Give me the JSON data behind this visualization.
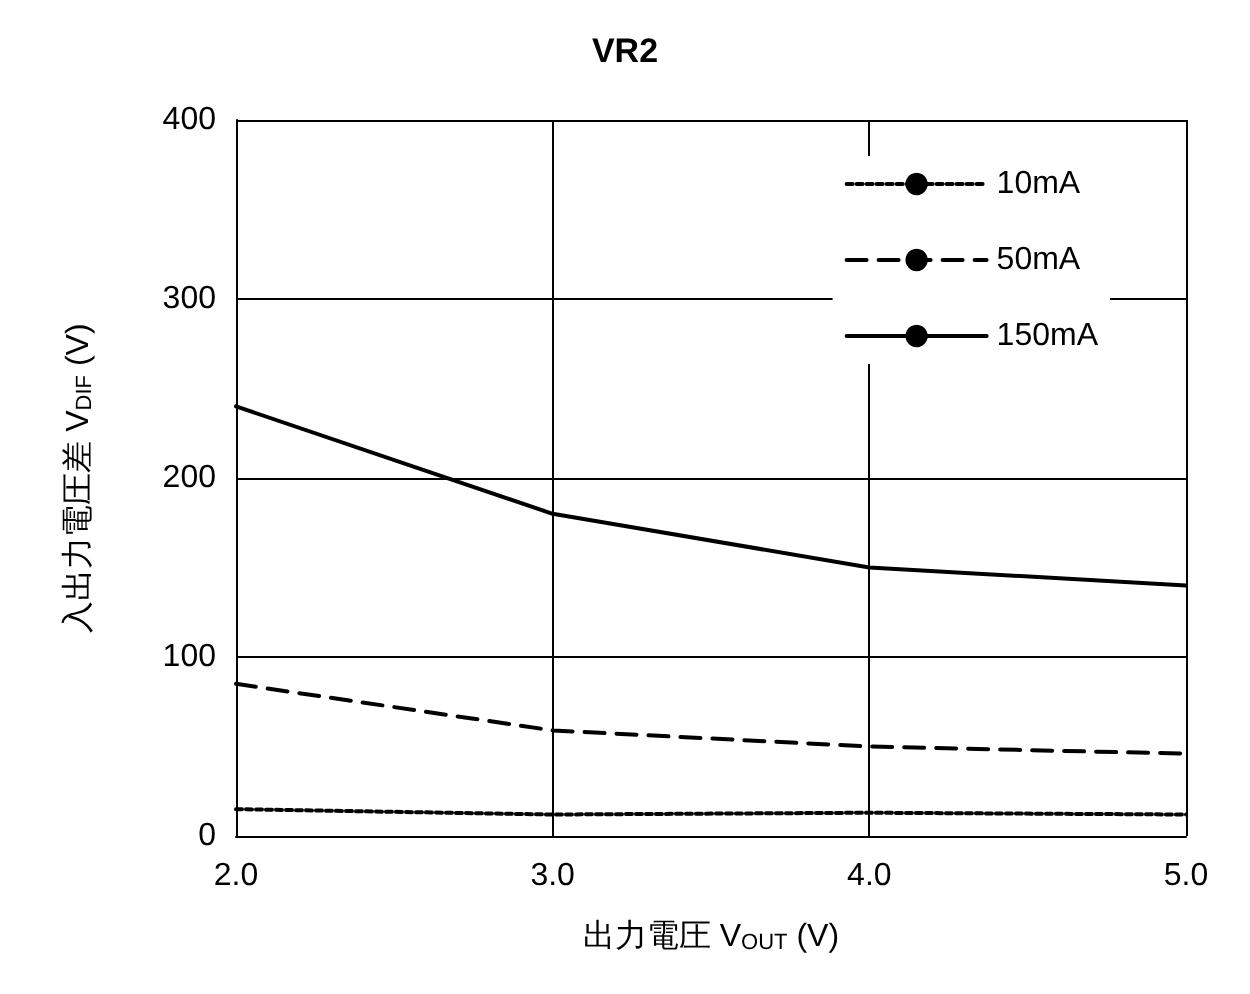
{
  "chart_data": {
    "type": "line",
    "title": "VR2",
    "xlabel": "出力電圧 V$_{OUT}$ (V)",
    "ylabel": "入出力電圧差 V$_{DIF}$ (V)",
    "x": [
      2.0,
      3.0,
      4.0,
      5.0
    ],
    "series": [
      {
        "name": "10mA",
        "color": "#000000",
        "line_style": "dotted",
        "values": [
          15,
          12,
          13,
          12
        ]
      },
      {
        "name": "50mA",
        "color": "#000000",
        "line_style": "dashed",
        "values": [
          85,
          59,
          50,
          46
        ]
      },
      {
        "name": "150mA",
        "color": "#000000",
        "line_style": "solid",
        "values": [
          240,
          180,
          150,
          140
        ]
      }
    ],
    "xlim": [
      2.0,
      5.0
    ],
    "xticks": [
      {
        "value": 2,
        "label": "2.0"
      },
      {
        "value": 3,
        "label": "3.0"
      },
      {
        "value": 4,
        "label": "4.0"
      },
      {
        "value": 5,
        "label": "5.0"
      }
    ],
    "ylim": [
      0,
      400
    ],
    "yticks": [
      0,
      100,
      200,
      300,
      400
    ],
    "grid": true,
    "legend": "top right",
    "marker": "none"
  }
}
